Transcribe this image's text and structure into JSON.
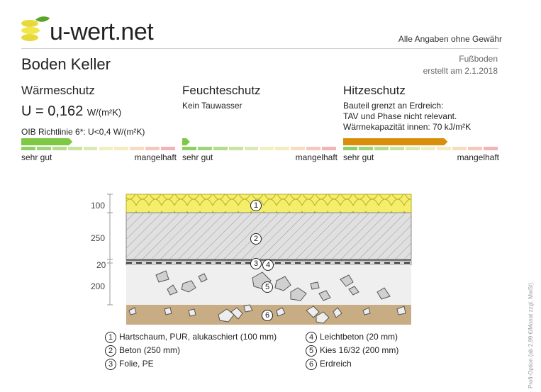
{
  "header": {
    "brand": "u-wert.net",
    "disclaimer": "Alle Angaben ohne Gewähr",
    "title": "Boden Keller",
    "category": "Fußboden",
    "created": "erstellt am 2.1.2018"
  },
  "sections": {
    "waerme": {
      "heading": "Wärmeschutz",
      "u_label": "U = 0,162",
      "u_unit": "W/(m²K)",
      "note": "OIB Richtlinie 6*: U<0,4 W/(m²K)",
      "rating_fraction": 0.33,
      "scale_good": "sehr gut",
      "scale_bad": "mangelhaft"
    },
    "feuchte": {
      "heading": "Feuchteschutz",
      "line1": "Kein Tauwasser",
      "rating_fraction": 0.05,
      "scale_good": "sehr gut",
      "scale_bad": "mangelhaft"
    },
    "hitze": {
      "heading": "Hitzeschutz",
      "line1": "Bauteil grenzt an Erdreich:",
      "line2": "TAV und Phase nicht relevant.",
      "line3": "Wärmekapazität innen: 70 kJ/m²K",
      "rating_fraction": 0.67,
      "scale_good": "sehr gut",
      "scale_bad": "mangelhaft"
    }
  },
  "colors": {
    "good_green": "#7ec844",
    "heat_orange": "#d98e0c",
    "insulation_yellow": "#f5ee6b",
    "concrete_grey": "#d9d9d9",
    "gravel_bg": "#efefef",
    "soil": "#c8ac84"
  },
  "layers": {
    "dims": [
      "100",
      "250",
      "20",
      "200"
    ],
    "markers": [
      "1",
      "2",
      "3",
      "4",
      "5",
      "6"
    ],
    "legend": [
      {
        "num": "1",
        "label": "Hartschaum, PUR, alukaschiert (100 mm)"
      },
      {
        "num": "2",
        "label": "Beton (250 mm)"
      },
      {
        "num": "3",
        "label": "Folie, PE"
      },
      {
        "num": "4",
        "label": "Leichtbeton (20 mm)"
      },
      {
        "num": "5",
        "label": "Kies 16/32 (200 mm)"
      },
      {
        "num": "6",
        "label": "Erdreich"
      }
    ]
  },
  "side_note": "Profi-Option (ab 2,99 €/Monat zzgl. MwSt)."
}
